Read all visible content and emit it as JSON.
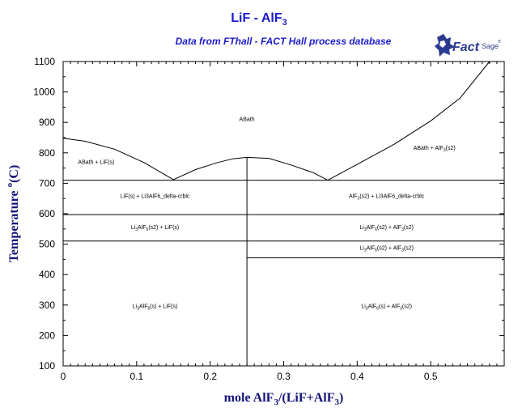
{
  "header": {
    "title_main": "LiF - AlF",
    "title_sub": "3",
    "subtitle": "Data from FThall - FACT Hall process database"
  },
  "logo": {
    "text_main": "Fact",
    "text_sage": "Sage",
    "registered": "®",
    "color": "#2a3b8f"
  },
  "chart_data": {
    "type": "line",
    "title": "LiF - AlF3",
    "subtitle": "Data from FThall - FACT Hall process database",
    "xlabel": {
      "pre": "mole AlF",
      "s1": "3",
      "mid": "/(LiF+AlF",
      "s2": "3",
      "post": ")"
    },
    "ylabel": {
      "pre": "Temperature ",
      "sup": "o",
      "post": "(C)"
    },
    "xlim": [
      0,
      0.6
    ],
    "ylim": [
      100,
      1100
    ],
    "xticks": [
      0,
      0.1,
      0.2,
      0.3,
      0.4,
      0.5
    ],
    "xtick_labels": [
      "0",
      "0.1",
      "0.2",
      "0.3",
      "0.4",
      "0.5"
    ],
    "yticks": [
      100,
      200,
      300,
      400,
      500,
      600,
      700,
      800,
      900,
      1000,
      1100
    ],
    "ytick_labels": [
      "100",
      "200",
      "300",
      "400",
      "500",
      "600",
      "700",
      "800",
      "900",
      "1000",
      "1100"
    ],
    "grid": false,
    "line_color": "#000000",
    "boundaries": [
      {
        "name": "liquidus-lif",
        "points": [
          [
            0,
            848
          ],
          [
            0.03,
            838
          ],
          [
            0.07,
            812
          ],
          [
            0.11,
            768
          ],
          [
            0.15,
            712
          ]
        ]
      },
      {
        "name": "liquidus-cryolite-left",
        "points": [
          [
            0.15,
            712
          ],
          [
            0.18,
            745
          ],
          [
            0.21,
            768
          ],
          [
            0.23,
            780
          ],
          [
            0.25,
            785
          ]
        ]
      },
      {
        "name": "liquidus-cryolite-right",
        "points": [
          [
            0.25,
            785
          ],
          [
            0.28,
            782
          ],
          [
            0.31,
            760
          ],
          [
            0.34,
            735
          ],
          [
            0.36,
            710
          ]
        ]
      },
      {
        "name": "liquidus-alf3",
        "points": [
          [
            0.36,
            710
          ],
          [
            0.4,
            762
          ],
          [
            0.45,
            828
          ],
          [
            0.5,
            905
          ],
          [
            0.54,
            980
          ],
          [
            0.58,
            1100
          ]
        ]
      },
      {
        "name": "eutectic-710",
        "points": [
          [
            0,
            710
          ],
          [
            0.6,
            710
          ]
        ]
      },
      {
        "name": "transition-597",
        "points": [
          [
            0,
            597
          ],
          [
            0.6,
            597
          ]
        ]
      },
      {
        "name": "transition-510",
        "points": [
          [
            0,
            510
          ],
          [
            0.6,
            510
          ]
        ]
      },
      {
        "name": "transition-455",
        "points": [
          [
            0.25,
            455
          ],
          [
            0.6,
            455
          ]
        ]
      },
      {
        "name": "cryolite-composition",
        "points": [
          [
            0.25,
            100
          ],
          [
            0.25,
            785
          ]
        ]
      }
    ],
    "regions": [
      {
        "name": "region-abath",
        "x": 0.25,
        "y": 905,
        "parts": [
          [
            "ABath",
            "n"
          ]
        ],
        "color": "#cc2222",
        "size": 14
      },
      {
        "name": "region-abath-lif",
        "x": 0.045,
        "y": 763,
        "parts": [
          [
            "ABath + LiF(s)",
            "n"
          ]
        ]
      },
      {
        "name": "region-abath-alf3",
        "x": 0.505,
        "y": 810,
        "parts": [
          [
            "ABath + AlF",
            "n"
          ],
          [
            "3",
            "sub"
          ],
          [
            "(s2)",
            "n"
          ]
        ]
      },
      {
        "name": "region-lif-li3alf6-delta",
        "x": 0.125,
        "y": 652,
        "parts": [
          [
            "LiF(s) + Li3AlF6_delta-crblc",
            "n"
          ]
        ]
      },
      {
        "name": "region-alf3-li3alf6-delta",
        "x": 0.44,
        "y": 652,
        "parts": [
          [
            "AlF",
            "n"
          ],
          [
            "3",
            "sub"
          ],
          [
            "(s2) + Li3AlF6_delta-crblc",
            "n"
          ]
        ]
      },
      {
        "name": "region-li3alf6-s2-lif",
        "x": 0.125,
        "y": 550,
        "parts": [
          [
            "Li",
            "n"
          ],
          [
            "3",
            "sub"
          ],
          [
            "AlF",
            "n"
          ],
          [
            "6",
            "sub"
          ],
          [
            "(s2) + LiF(s)",
            "n"
          ]
        ]
      },
      {
        "name": "region-li3alf6-s2-alf3-upper",
        "x": 0.44,
        "y": 550,
        "parts": [
          [
            "Li",
            "n"
          ],
          [
            "3",
            "sub"
          ],
          [
            "AlF",
            "n"
          ],
          [
            "6",
            "sub"
          ],
          [
            "(s2) + AlF",
            "n"
          ],
          [
            "3",
            "sub"
          ],
          [
            "(s2)",
            "n"
          ]
        ]
      },
      {
        "name": "region-li3alf6-s2-alf3-lower",
        "x": 0.44,
        "y": 482,
        "parts": [
          [
            "Li",
            "n"
          ],
          [
            "3",
            "sub"
          ],
          [
            "AlF",
            "n"
          ],
          [
            "6",
            "sub"
          ],
          [
            "(s2) + AlF",
            "n"
          ],
          [
            "3",
            "sub"
          ],
          [
            "(s2)",
            "n"
          ]
        ]
      },
      {
        "name": "region-li3alf6-s-lif",
        "x": 0.125,
        "y": 290,
        "parts": [
          [
            "Li",
            "n"
          ],
          [
            "3",
            "sub"
          ],
          [
            "AlF",
            "n"
          ],
          [
            "6",
            "sub"
          ],
          [
            "(s) + LiF(s)",
            "n"
          ]
        ]
      },
      {
        "name": "region-li3alf6-s-alf3",
        "x": 0.44,
        "y": 290,
        "parts": [
          [
            "Li",
            "n"
          ],
          [
            "3",
            "sub"
          ],
          [
            "AlF",
            "n"
          ],
          [
            "6",
            "sub"
          ],
          [
            "(s) + AlF",
            "n"
          ],
          [
            "3",
            "sub"
          ],
          [
            "(s2)",
            "n"
          ]
        ]
      }
    ]
  }
}
